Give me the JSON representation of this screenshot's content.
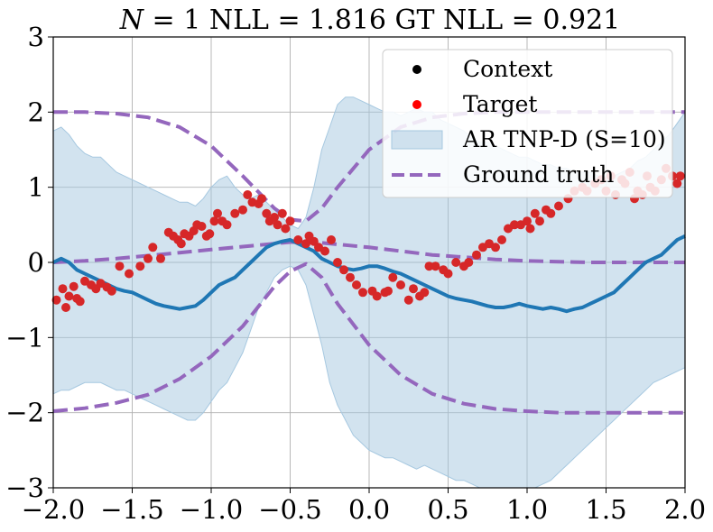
{
  "chart_data": {
    "type": "line",
    "title": "N = 1 NLL = 1.816 GT NLL = 0.921",
    "title_parts": {
      "n_symbol": "N",
      "n_rest": " = 1 NLL = 1.816 GT NLL = 0.921"
    },
    "xlabel": "",
    "ylabel": "",
    "xlim": [
      -2.0,
      2.0
    ],
    "ylim": [
      -3,
      3
    ],
    "xticks": [
      -2.0,
      -1.5,
      -1.0,
      -0.5,
      0.0,
      0.5,
      1.0,
      1.5,
      2.0
    ],
    "xtick_labels": [
      "−2.0",
      "−1.5",
      "−1.0",
      "−0.5",
      "0.0",
      "0.5",
      "1.0",
      "1.5",
      "2.0"
    ],
    "yticks": [
      -3,
      -2,
      -1,
      0,
      1,
      2,
      3
    ],
    "ytick_labels": [
      "−3",
      "−2",
      "−1",
      "0",
      "1",
      "2",
      "3"
    ],
    "grid": true,
    "legend_position": "top-right",
    "colors": {
      "context": "#000000",
      "target": "#d62728",
      "model": "#1f77b4",
      "band": "#a6c8e0",
      "ground_truth": "#9467bd"
    },
    "legend": [
      {
        "label": "Context",
        "kind": "marker",
        "color": "#000000"
      },
      {
        "label": "Target",
        "kind": "marker",
        "color": "#ff0000"
      },
      {
        "label": "AR TNP-D (S=10)",
        "kind": "patch",
        "color": "#a6c8e0"
      },
      {
        "label": "Ground truth",
        "kind": "dashed",
        "color": "#9467bd"
      }
    ],
    "series": [
      {
        "name": "Target",
        "kind": "scatter",
        "x": [
          -1.98,
          -1.94,
          -1.92,
          -1.9,
          -1.87,
          -1.85,
          -1.83,
          -1.8,
          -1.76,
          -1.73,
          -1.7,
          -1.66,
          -1.63,
          -1.58,
          -1.52,
          -1.45,
          -1.4,
          -1.37,
          -1.32,
          -1.27,
          -1.24,
          -1.21,
          -1.19,
          -1.17,
          -1.14,
          -1.11,
          -1.09,
          -1.06,
          -1.03,
          -1.01,
          -0.98,
          -0.96,
          -0.93,
          -0.9,
          -0.85,
          -0.8,
          -0.77,
          -0.74,
          -0.7,
          -0.68,
          -0.65,
          -0.63,
          -0.6,
          -0.58,
          -0.55,
          -0.53,
          -0.5,
          -0.45,
          -0.4,
          -0.38,
          -0.35,
          -0.32,
          -0.28,
          -0.24,
          -0.2,
          -0.16,
          -0.12,
          -0.08,
          -0.04,
          0.02,
          0.05,
          0.1,
          0.12,
          0.15,
          0.2,
          0.25,
          0.28,
          0.32,
          0.35,
          0.38,
          0.42,
          0.47,
          0.5,
          0.55,
          0.6,
          0.63,
          0.68,
          0.72,
          0.76,
          0.8,
          0.84,
          0.88,
          0.92,
          0.96,
          1.0,
          1.02,
          1.05,
          1.08,
          1.12,
          1.15,
          1.2,
          1.26,
          1.3,
          1.35,
          1.38,
          1.43,
          1.47,
          1.5,
          1.53,
          1.56,
          1.6,
          1.62,
          1.65,
          1.68,
          1.7,
          1.73,
          1.76,
          1.78,
          1.81,
          1.85,
          1.88,
          1.92,
          1.95,
          1.97
        ],
        "y": [
          -0.5,
          -0.35,
          -0.6,
          -0.45,
          -0.32,
          -0.48,
          -0.52,
          -0.25,
          -0.3,
          -0.35,
          -0.28,
          -0.33,
          -0.38,
          -0.05,
          -0.15,
          -0.05,
          0.05,
          0.2,
          0.05,
          0.4,
          0.35,
          0.3,
          0.25,
          0.38,
          0.35,
          0.42,
          0.5,
          0.48,
          0.35,
          0.38,
          0.55,
          0.65,
          0.55,
          0.5,
          0.65,
          0.7,
          0.9,
          0.8,
          0.78,
          0.85,
          0.65,
          0.55,
          0.6,
          0.5,
          0.65,
          0.45,
          0.55,
          0.3,
          0.25,
          0.35,
          0.28,
          0.2,
          0.15,
          0.3,
          0.0,
          -0.1,
          -0.2,
          -0.3,
          -0.4,
          -0.38,
          -0.45,
          -0.4,
          -0.38,
          -0.2,
          -0.3,
          -0.5,
          -0.35,
          -0.45,
          -0.4,
          -0.05,
          -0.05,
          -0.1,
          -0.15,
          0.0,
          -0.05,
          0.0,
          0.1,
          0.2,
          0.25,
          0.2,
          0.3,
          0.45,
          0.5,
          0.5,
          0.55,
          0.45,
          0.65,
          0.55,
          0.7,
          0.65,
          0.75,
          0.85,
          0.95,
          1.0,
          0.95,
          1.05,
          1.1,
          0.95,
          1.15,
          0.9,
          1.1,
          1.05,
          1.2,
          0.85,
          0.95,
          0.9,
          1.15,
          1.0,
          0.95,
          1.1,
          1.25,
          1.15,
          1.05,
          1.15
        ]
      },
      {
        "name": "AR TNP-D (S=10)",
        "kind": "mean",
        "x": [
          -2.0,
          -1.95,
          -1.9,
          -1.85,
          -1.8,
          -1.75,
          -1.7,
          -1.65,
          -1.6,
          -1.55,
          -1.5,
          -1.45,
          -1.4,
          -1.35,
          -1.3,
          -1.25,
          -1.2,
          -1.15,
          -1.1,
          -1.05,
          -1.0,
          -0.95,
          -0.9,
          -0.85,
          -0.8,
          -0.75,
          -0.7,
          -0.65,
          -0.6,
          -0.55,
          -0.5,
          -0.45,
          -0.4,
          -0.35,
          -0.3,
          -0.25,
          -0.2,
          -0.15,
          -0.1,
          -0.05,
          0.0,
          0.05,
          0.1,
          0.15,
          0.2,
          0.25,
          0.3,
          0.35,
          0.4,
          0.45,
          0.5,
          0.55,
          0.6,
          0.65,
          0.7,
          0.75,
          0.8,
          0.85,
          0.9,
          0.95,
          1.0,
          1.05,
          1.1,
          1.15,
          1.2,
          1.25,
          1.3,
          1.35,
          1.4,
          1.45,
          1.5,
          1.55,
          1.6,
          1.65,
          1.7,
          1.75,
          1.8,
          1.85,
          1.9,
          1.95,
          2.0
        ],
        "y": [
          0.0,
          0.05,
          0.0,
          -0.1,
          -0.15,
          -0.2,
          -0.25,
          -0.3,
          -0.35,
          -0.38,
          -0.4,
          -0.45,
          -0.5,
          -0.55,
          -0.58,
          -0.6,
          -0.62,
          -0.6,
          -0.58,
          -0.5,
          -0.4,
          -0.3,
          -0.25,
          -0.2,
          -0.1,
          0.0,
          0.1,
          0.2,
          0.25,
          0.28,
          0.3,
          0.25,
          0.2,
          0.15,
          0.05,
          0.0,
          -0.05,
          -0.08,
          -0.1,
          -0.08,
          -0.05,
          -0.05,
          -0.08,
          -0.12,
          -0.15,
          -0.2,
          -0.25,
          -0.3,
          -0.35,
          -0.4,
          -0.45,
          -0.48,
          -0.5,
          -0.52,
          -0.55,
          -0.58,
          -0.6,
          -0.6,
          -0.58,
          -0.55,
          -0.58,
          -0.6,
          -0.62,
          -0.6,
          -0.62,
          -0.65,
          -0.62,
          -0.6,
          -0.55,
          -0.5,
          -0.45,
          -0.4,
          -0.3,
          -0.2,
          -0.1,
          0.0,
          0.05,
          0.1,
          0.2,
          0.3,
          0.35
        ]
      },
      {
        "name": "AR TNP-D (S=10) band",
        "kind": "band",
        "x": [
          -2.0,
          -1.95,
          -1.9,
          -1.85,
          -1.8,
          -1.75,
          -1.7,
          -1.65,
          -1.6,
          -1.55,
          -1.5,
          -1.45,
          -1.4,
          -1.35,
          -1.3,
          -1.25,
          -1.2,
          -1.15,
          -1.1,
          -1.05,
          -1.0,
          -0.95,
          -0.9,
          -0.85,
          -0.8,
          -0.75,
          -0.7,
          -0.65,
          -0.6,
          -0.55,
          -0.5,
          -0.45,
          -0.4,
          -0.35,
          -0.3,
          -0.25,
          -0.2,
          -0.15,
          -0.1,
          -0.05,
          0.0,
          0.05,
          0.1,
          0.15,
          0.2,
          0.25,
          0.3,
          0.35,
          0.4,
          0.45,
          0.5,
          0.55,
          0.6,
          0.65,
          0.7,
          0.75,
          0.8,
          0.85,
          0.9,
          0.95,
          1.0,
          1.05,
          1.1,
          1.15,
          1.2,
          1.25,
          1.3,
          1.35,
          1.4,
          1.45,
          1.5,
          1.55,
          1.6,
          1.65,
          1.7,
          1.75,
          1.8,
          1.85,
          1.9,
          1.95,
          2.0
        ],
        "upper": [
          1.75,
          1.8,
          1.7,
          1.55,
          1.45,
          1.4,
          1.4,
          1.3,
          1.2,
          1.15,
          1.1,
          1.05,
          1.0,
          0.95,
          0.9,
          0.85,
          0.8,
          0.8,
          0.75,
          0.85,
          1.0,
          1.1,
          1.15,
          1.0,
          0.9,
          0.85,
          0.9,
          0.8,
          0.7,
          0.6,
          0.5,
          0.45,
          0.6,
          1.0,
          1.5,
          1.8,
          2.1,
          2.2,
          2.2,
          2.15,
          2.1,
          2.05,
          2.0,
          2.0,
          1.95,
          2.0,
          2.05,
          2.0,
          2.0,
          1.9,
          1.85,
          1.8,
          1.75,
          1.65,
          1.6,
          1.6,
          1.55,
          1.5,
          1.45,
          1.4,
          1.4,
          1.35,
          1.3,
          1.3,
          1.25,
          1.25,
          1.2,
          1.2,
          1.2,
          1.15,
          1.15,
          1.15,
          1.2,
          1.25,
          1.35,
          1.4,
          1.5,
          1.6,
          1.7,
          1.85,
          2.0
        ],
        "lower": [
          -1.75,
          -1.7,
          -1.7,
          -1.65,
          -1.6,
          -1.6,
          -1.6,
          -1.65,
          -1.7,
          -1.7,
          -1.75,
          -1.8,
          -1.85,
          -1.9,
          -1.95,
          -2.0,
          -2.05,
          -2.1,
          -2.1,
          -2.0,
          -1.85,
          -1.7,
          -1.6,
          -1.4,
          -1.2,
          -0.9,
          -0.6,
          -0.4,
          -0.2,
          -0.1,
          -0.05,
          -0.1,
          -0.3,
          -0.7,
          -1.1,
          -1.6,
          -1.9,
          -2.1,
          -2.3,
          -2.4,
          -2.5,
          -2.55,
          -2.6,
          -2.6,
          -2.65,
          -2.7,
          -2.75,
          -2.7,
          -2.75,
          -2.8,
          -2.85,
          -2.9,
          -2.9,
          -2.95,
          -3.0,
          -3.0,
          -3.0,
          -3.0,
          -3.0,
          -3.0,
          -3.0,
          -3.0,
          -2.95,
          -2.9,
          -2.8,
          -2.7,
          -2.6,
          -2.5,
          -2.4,
          -2.3,
          -2.2,
          -2.1,
          -2.0,
          -1.9,
          -1.8,
          -1.7,
          -1.6,
          -1.55,
          -1.5,
          -1.45,
          -1.4
        ]
      },
      {
        "name": "Ground truth",
        "kind": "dashed",
        "lines": [
          {
            "x": [
              -2.0,
              -1.8,
              -1.6,
              -1.4,
              -1.2,
              -1.0,
              -0.8,
              -0.6,
              -0.5,
              -0.4,
              -0.3,
              -0.2,
              0.0,
              0.2,
              0.4,
              0.6,
              0.8,
              1.0,
              1.2,
              1.4,
              1.6,
              1.8,
              2.0
            ],
            "y": [
              2.0,
              2.0,
              1.98,
              1.93,
              1.8,
              1.55,
              1.15,
              0.72,
              0.57,
              0.55,
              0.72,
              1.0,
              1.5,
              1.8,
              1.93,
              1.98,
              2.0,
              2.0,
              2.0,
              2.0,
              2.0,
              2.0,
              2.0
            ]
          },
          {
            "x": [
              -2.0,
              -1.8,
              -1.6,
              -1.4,
              -1.2,
              -1.0,
              -0.8,
              -0.6,
              -0.5,
              -0.4,
              -0.3,
              -0.2,
              0.0,
              0.2,
              0.4,
              0.6,
              0.8,
              1.0,
              1.2,
              1.4,
              1.6,
              1.8,
              2.0
            ],
            "y": [
              0.0,
              0.02,
              0.05,
              0.09,
              0.13,
              0.17,
              0.21,
              0.25,
              0.27,
              0.27,
              0.26,
              0.24,
              0.2,
              0.15,
              0.1,
              0.07,
              0.04,
              0.02,
              0.01,
              0.0,
              0.0,
              0.0,
              0.0
            ]
          },
          {
            "x": [
              -2.0,
              -1.8,
              -1.6,
              -1.4,
              -1.2,
              -1.0,
              -0.8,
              -0.6,
              -0.5,
              -0.4,
              -0.3,
              -0.2,
              0.0,
              0.2,
              0.4,
              0.6,
              0.8,
              1.0,
              1.2,
              1.4,
              1.6,
              1.8,
              2.0
            ],
            "y": [
              -1.98,
              -1.94,
              -1.87,
              -1.76,
              -1.55,
              -1.25,
              -0.85,
              -0.32,
              -0.12,
              -0.02,
              -0.2,
              -0.55,
              -1.1,
              -1.5,
              -1.75,
              -1.88,
              -1.95,
              -1.98,
              -2.0,
              -2.0,
              -2.0,
              -2.0,
              -2.0
            ]
          }
        ]
      }
    ]
  }
}
